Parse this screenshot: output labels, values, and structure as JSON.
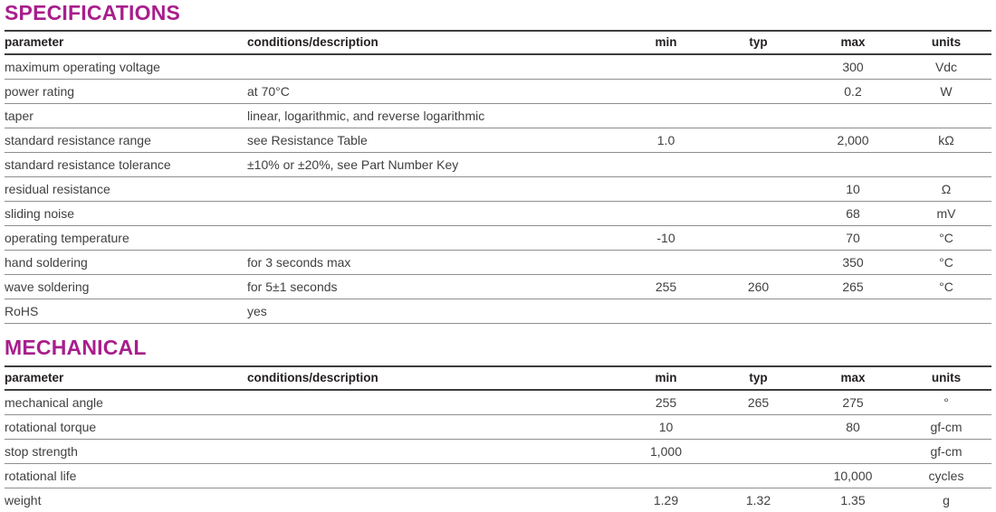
{
  "accent_color": "#a81e8c",
  "sections": [
    {
      "title": "SPECIFICATIONS",
      "columns": [
        "parameter",
        "conditions/description",
        "min",
        "typ",
        "max",
        "units"
      ],
      "rows": [
        [
          "maximum operating voltage",
          "",
          "",
          "",
          "300",
          "Vdc"
        ],
        [
          "power rating",
          "at 70°C",
          "",
          "",
          "0.2",
          "W"
        ],
        [
          "taper",
          "linear, logarithmic, and reverse logarithmic",
          "",
          "",
          "",
          ""
        ],
        [
          "standard resistance range",
          "see Resistance Table",
          "1.0",
          "",
          "2,000",
          "kΩ"
        ],
        [
          "standard resistance tolerance",
          "±10% or ±20%, see Part Number Key",
          "",
          "",
          "",
          ""
        ],
        [
          "residual resistance",
          "",
          "",
          "",
          "10",
          "Ω"
        ],
        [
          "sliding noise",
          "",
          "",
          "",
          "68",
          "mV"
        ],
        [
          "operating temperature",
          "",
          "-10",
          "",
          "70",
          "°C"
        ],
        [
          "hand soldering",
          "for 3 seconds max",
          "",
          "",
          "350",
          "°C"
        ],
        [
          "wave soldering",
          "for 5±1 seconds",
          "255",
          "260",
          "265",
          "°C"
        ],
        [
          "RoHS",
          "yes",
          "",
          "",
          "",
          ""
        ]
      ]
    },
    {
      "title": "MECHANICAL",
      "columns": [
        "parameter",
        "conditions/description",
        "min",
        "typ",
        "max",
        "units"
      ],
      "rows": [
        [
          "mechanical angle",
          "",
          "255",
          "265",
          "275",
          "°"
        ],
        [
          "rotational torque",
          "",
          "10",
          "",
          "80",
          "gf-cm"
        ],
        [
          "stop strength",
          "",
          "1,000",
          "",
          "",
          "gf-cm"
        ],
        [
          "rotational life",
          "",
          "",
          "",
          "10,000",
          "cycles"
        ],
        [
          "weight",
          "",
          "1.29",
          "1.32",
          "1.35",
          "g"
        ]
      ]
    }
  ]
}
